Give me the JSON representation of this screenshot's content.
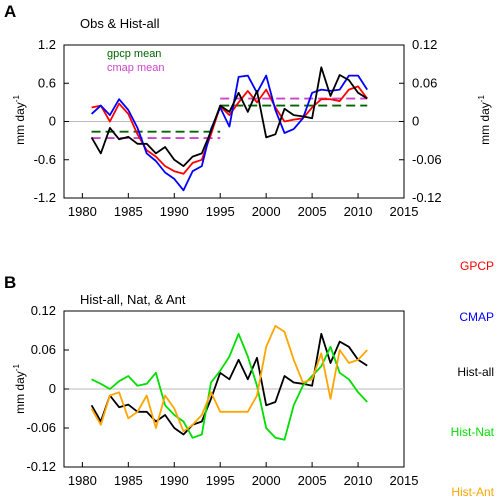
{
  "colors": {
    "gpcp": "#ff0000",
    "cmap": "#0000ff",
    "hist_all": "#000000",
    "hist_nat": "#00dd00",
    "hist_ant": "#ffa500",
    "gpcp_mean": "#006400",
    "cmap_mean": "#cc44cc",
    "zero_line": "#bbbbbb"
  },
  "legend": {
    "gpcp": "GPCP",
    "cmap": "CMAP",
    "hist_all": "Hist-all",
    "hist_nat": "Hist-Nat",
    "hist_ant": "Hist-Ant"
  },
  "chart_data": [
    {
      "panel": "A",
      "type": "line",
      "title": "Obs & Hist-all",
      "ylabel": "mm day",
      "ylabel_exp": "-1",
      "y2label": "mm day",
      "y2label_exp": "-1",
      "xlim": [
        1978,
        2015
      ],
      "xticks": [
        "1980",
        "1985",
        "1990",
        "1995",
        "2000",
        "2005",
        "2010",
        "2015"
      ],
      "ylim": [
        -1.2,
        1.2
      ],
      "yticks": [
        "-1.2",
        "-0.6",
        "0",
        "0.6",
        "1.2"
      ],
      "y2lim": [
        -0.12,
        0.12
      ],
      "y2ticks": [
        "-0.12",
        "-0.06",
        "0",
        "0.06",
        "0.12"
      ],
      "mean_legend": {
        "gpcp": "gpcp mean",
        "cmap": "cmap mean"
      },
      "x": [
        1981,
        1982,
        1983,
        1984,
        1985,
        1986,
        1987,
        1988,
        1989,
        1990,
        1991,
        1992,
        1993,
        1994,
        1995,
        1996,
        1997,
        1998,
        1999,
        2000,
        2001,
        2002,
        2003,
        2004,
        2005,
        2006,
        2007,
        2008,
        2009,
        2010,
        2011
      ],
      "series": [
        {
          "name": "GPCP",
          "color_key": "gpcp",
          "axis": "left",
          "values": [
            0.22,
            0.25,
            0.0,
            0.28,
            0.12,
            -0.2,
            -0.45,
            -0.55,
            -0.7,
            -0.78,
            -0.82,
            -0.65,
            -0.6,
            -0.2,
            0.24,
            0.1,
            0.3,
            0.48,
            0.3,
            0.5,
            0.22,
            0.0,
            0.03,
            0.05,
            0.22,
            0.35,
            0.35,
            0.32,
            0.5,
            0.55,
            0.36
          ]
        },
        {
          "name": "CMAP",
          "color_key": "cmap",
          "axis": "left",
          "values": [
            0.12,
            0.25,
            0.1,
            0.35,
            0.18,
            -0.1,
            -0.5,
            -0.62,
            -0.8,
            -0.9,
            -1.08,
            -0.78,
            -0.7,
            -0.12,
            0.22,
            -0.08,
            0.7,
            0.72,
            0.45,
            0.72,
            0.18,
            -0.18,
            -0.12,
            0.05,
            0.45,
            0.5,
            0.48,
            0.5,
            0.72,
            0.72,
            0.5
          ]
        },
        {
          "name": "Hist-all",
          "color_key": "hist_all",
          "axis": "right",
          "values": [
            -0.025,
            -0.05,
            -0.01,
            -0.028,
            -0.024,
            -0.035,
            -0.035,
            -0.05,
            -0.04,
            -0.06,
            -0.07,
            -0.055,
            -0.05,
            -0.015,
            0.025,
            0.015,
            0.045,
            0.015,
            0.048,
            -0.025,
            -0.02,
            0.02,
            0.01,
            0.008,
            0.005,
            0.085,
            0.04,
            0.073,
            0.065,
            0.045,
            0.036
          ]
        }
      ],
      "means": [
        {
          "name": "gpcp mean",
          "color_key": "gpcp_mean",
          "segments": [
            {
              "x": [
                1981,
                1995
              ],
              "y": -0.16
            },
            {
              "x": [
                1995,
                2011
              ],
              "y": 0.25
            }
          ]
        },
        {
          "name": "cmap mean",
          "color_key": "cmap_mean",
          "segments": [
            {
              "x": [
                1981,
                1995
              ],
              "y": -0.26
            },
            {
              "x": [
                1995,
                2011
              ],
              "y": 0.36
            }
          ]
        }
      ]
    },
    {
      "panel": "B",
      "type": "line",
      "title": "Hist-all, Nat, & Ant",
      "ylabel": "mm day",
      "ylabel_exp": "-1",
      "xlim": [
        1978,
        2015
      ],
      "xticks": [
        "1980",
        "1985",
        "1990",
        "1995",
        "2000",
        "2005",
        "2010",
        "2015"
      ],
      "ylim": [
        -0.12,
        0.12
      ],
      "yticks": [
        "-0.12",
        "-0.06",
        "0",
        "0.06",
        "0.12"
      ],
      "x": [
        1981,
        1982,
        1983,
        1984,
        1985,
        1986,
        1987,
        1988,
        1989,
        1990,
        1991,
        1992,
        1993,
        1994,
        1995,
        1996,
        1997,
        1998,
        1999,
        2000,
        2001,
        2002,
        2003,
        2004,
        2005,
        2006,
        2007,
        2008,
        2009,
        2010,
        2011
      ],
      "series": [
        {
          "name": "Hist-all",
          "color_key": "hist_all",
          "values": [
            -0.025,
            -0.05,
            -0.01,
            -0.028,
            -0.024,
            -0.035,
            -0.035,
            -0.05,
            -0.04,
            -0.06,
            -0.07,
            -0.055,
            -0.05,
            -0.015,
            0.025,
            0.015,
            0.045,
            0.015,
            0.048,
            -0.025,
            -0.02,
            0.02,
            0.01,
            0.008,
            0.005,
            0.085,
            0.04,
            0.073,
            0.065,
            0.045,
            0.036
          ]
        },
        {
          "name": "Hist-Nat",
          "color_key": "hist_nat",
          "values": [
            0.015,
            0.008,
            0.0,
            0.012,
            0.02,
            0.005,
            0.008,
            0.025,
            -0.025,
            -0.04,
            -0.05,
            -0.075,
            -0.07,
            0.01,
            0.028,
            0.05,
            0.085,
            0.05,
            0.005,
            -0.06,
            -0.075,
            -0.078,
            -0.025,
            0.005,
            0.02,
            0.035,
            0.065,
            0.025,
            0.015,
            -0.005,
            -0.02
          ]
        },
        {
          "name": "Hist-Ant",
          "color_key": "hist_ant",
          "values": [
            -0.03,
            -0.055,
            -0.01,
            -0.005,
            -0.045,
            -0.035,
            -0.01,
            -0.06,
            -0.01,
            -0.03,
            -0.065,
            -0.055,
            -0.04,
            -0.005,
            -0.035,
            -0.035,
            -0.035,
            -0.035,
            -0.01,
            0.065,
            0.097,
            0.088,
            0.045,
            0.01,
            0.015,
            0.055,
            -0.015,
            0.06,
            0.04,
            0.045,
            0.06
          ]
        }
      ]
    }
  ]
}
